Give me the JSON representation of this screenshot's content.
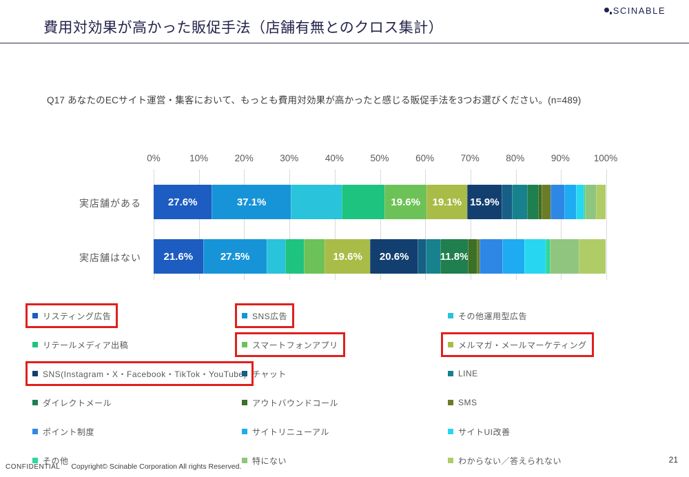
{
  "page": {
    "title": "費用対効果が高かった販促手法（店舗有無とのクロス集計）",
    "logo_text": "SCINABLE",
    "question": "Q17 あなたのECサイト運営・集客において、もっとも費用対効果が高かったと感じる販促手法を3つお選びください。(n=489)",
    "footer": {
      "confidential": "CONFIDENTIAL",
      "copyright": "Copyright© Scinable Corporation All rights Reserved.",
      "page_number": "21"
    }
  },
  "chart_data": {
    "type": "bar",
    "subtype": "horizontal-stacked",
    "normalization": "each bar's segments are scaled so the stack spans the full 0–100% axis",
    "x_axis": {
      "min": 0,
      "max": 100,
      "tick_step": 10,
      "tick_labels": [
        "0%",
        "10%",
        "20%",
        "30%",
        "40%",
        "50%",
        "60%",
        "70%",
        "80%",
        "90%",
        "100%"
      ]
    },
    "categories": [
      "実店舗がある",
      "実店舗はない"
    ],
    "highlight_color": "#e0201c",
    "series": [
      {
        "name": "リスティング広告",
        "color": "#1d5cc0",
        "highlighted": true,
        "values": [
          27.6,
          21.6
        ],
        "labels": [
          "27.6%",
          "21.6%"
        ]
      },
      {
        "name": "SNS広告",
        "color": "#1794d8",
        "highlighted": true,
        "values": [
          37.1,
          27.5
        ],
        "labels": [
          "37.1%",
          "27.5%"
        ]
      },
      {
        "name": "その他運用型広告",
        "color": "#29c3dc",
        "highlighted": false,
        "values": [
          23.8,
          7.9
        ],
        "labels": [
          null,
          null
        ]
      },
      {
        "name": "リテールメディア出稿",
        "color": "#1fc380",
        "highlighted": false,
        "values": [
          20.0,
          7.9
        ],
        "labels": [
          null,
          null
        ]
      },
      {
        "name": "スマートフォンアプリ",
        "color": "#6dc257",
        "highlighted": true,
        "values": [
          19.6,
          8.8
        ],
        "labels": [
          "19.6%",
          null
        ]
      },
      {
        "name": "メルマガ・メールマーケティング",
        "color": "#a9bc47",
        "highlighted": true,
        "values": [
          19.1,
          19.6
        ],
        "labels": [
          "19.1%",
          "19.6%"
        ]
      },
      {
        "name": "SNS(Instagram・X・Facebook・TikTok・YouTube)",
        "color": "#123f70",
        "highlighted": true,
        "values": [
          15.9,
          20.6
        ],
        "labels": [
          "15.9%",
          "20.6%"
        ]
      },
      {
        "name": "チャット",
        "color": "#175f86",
        "highlighted": false,
        "values": [
          4.8,
          3.2
        ],
        "labels": [
          null,
          null
        ]
      },
      {
        "name": "LINE",
        "color": "#17828e",
        "highlighted": false,
        "values": [
          6.9,
          6.1
        ],
        "labels": [
          null,
          null
        ]
      },
      {
        "name": "ダイレクトメール",
        "color": "#1f7f4e",
        "highlighted": false,
        "values": [
          4.8,
          11.8
        ],
        "labels": [
          null,
          "11.8%"
        ]
      },
      {
        "name": "アウトバウンドコール",
        "color": "#3c7026",
        "highlighted": false,
        "values": [
          1.3,
          3.5
        ],
        "labels": [
          null,
          null
        ]
      },
      {
        "name": "SMS",
        "color": "#6b7c28",
        "highlighted": false,
        "values": [
          3.9,
          0.9
        ],
        "labels": [
          null,
          null
        ]
      },
      {
        "name": "ポイント制度",
        "color": "#2f87e5",
        "highlighted": false,
        "values": [
          6.3,
          9.7
        ],
        "labels": [
          null,
          null
        ]
      },
      {
        "name": "サイトリニューアル",
        "color": "#1fabf2",
        "highlighted": false,
        "values": [
          5.3,
          9.4
        ],
        "labels": [
          null,
          null
        ]
      },
      {
        "name": "サイトUI改善",
        "color": "#27d7f2",
        "highlighted": false,
        "values": [
          3.2,
          9.1
        ],
        "labels": [
          null,
          null
        ]
      },
      {
        "name": "その他",
        "color": "#2cd89c",
        "highlighted": false,
        "values": [
          0.2,
          1.5
        ],
        "labels": [
          null,
          null
        ]
      },
      {
        "name": "特にない",
        "color": "#90c57f",
        "highlighted": false,
        "values": [
          4.8,
          12.3
        ],
        "labels": [
          null,
          null
        ]
      },
      {
        "name": "わからない／答えられない",
        "color": "#b0cc66",
        "highlighted": false,
        "values": [
          4.4,
          11.5
        ],
        "labels": [
          null,
          null
        ]
      }
    ]
  }
}
